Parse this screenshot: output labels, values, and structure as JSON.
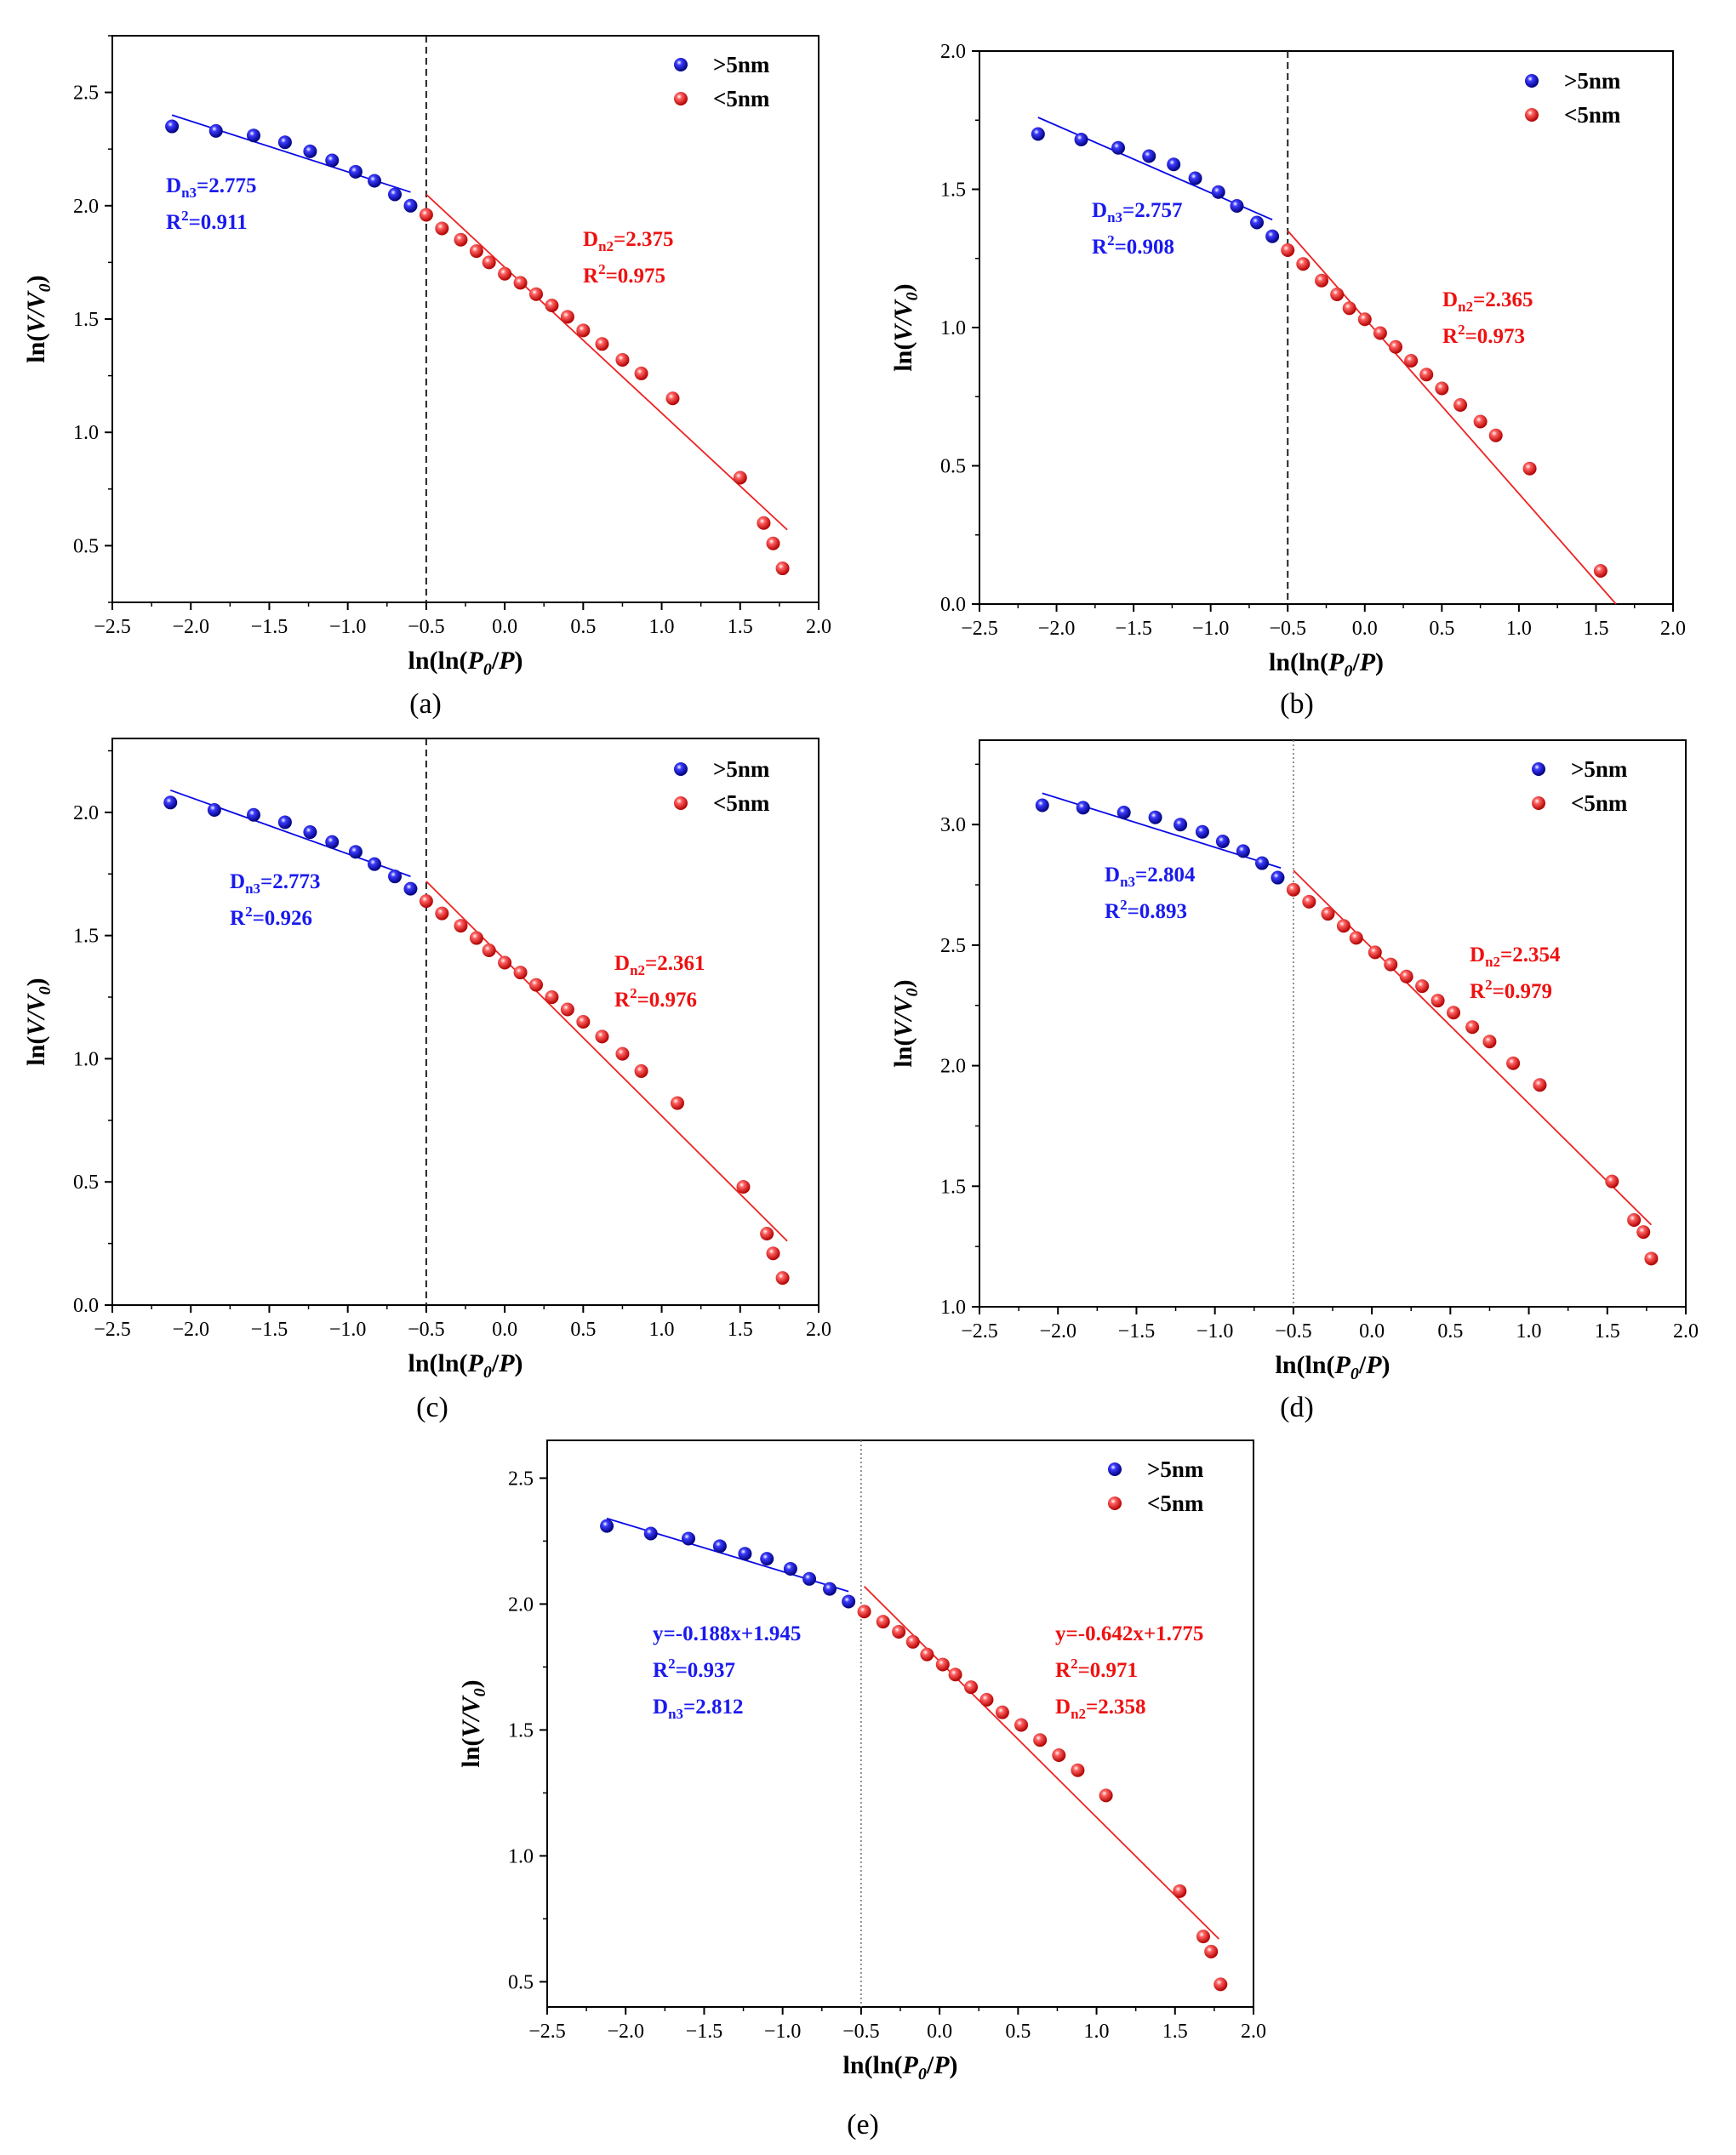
{
  "colors": {
    "blue": "#0a0ae6",
    "red": "#ee2222",
    "text_blue": "#1a1aee",
    "text_red": "#ee1111"
  },
  "legend": {
    "gt5": ">5nm",
    "lt5": "<5nm"
  },
  "axis_labels": {
    "x": "ln(ln(P0/P)",
    "y": "ln(V/V0)"
  },
  "chart_data": [
    {
      "type": "scatter",
      "panel_label": "(a)",
      "xlabel": "ln(ln(P0/P)",
      "ylabel": "ln(V/V0)",
      "xlim": [
        -2.5,
        2.0
      ],
      "ylim": [
        0.25,
        2.75
      ],
      "xticks": [
        "−2.5",
        "−2.0",
        "−1.5",
        "−1.0",
        "−0.5",
        "0.0",
        "0.5",
        "1.0",
        "1.5",
        "2.0"
      ],
      "yticks": [
        "0.5",
        "1.0",
        "1.5",
        "2.0",
        "2.5"
      ],
      "yticks_values": [
        0.5,
        1.0,
        1.5,
        2.0,
        2.5
      ],
      "divider_x": -0.5,
      "divider_style": "dashed",
      "series": [
        {
          "name": ">5nm",
          "x": [
            -2.12,
            -1.84,
            -1.6,
            -1.4,
            -1.24,
            -1.1,
            -0.95,
            -0.83,
            -0.7,
            -0.6
          ],
          "y": [
            2.35,
            2.33,
            2.31,
            2.28,
            2.24,
            2.2,
            2.15,
            2.11,
            2.05,
            2.0
          ],
          "fit": {
            "x": [
              -2.12,
              -0.6
            ],
            "y": [
              2.4,
              2.06
            ]
          }
        },
        {
          "name": "<5nm",
          "x": [
            -0.5,
            -0.4,
            -0.28,
            -0.18,
            -0.1,
            0.0,
            0.1,
            0.2,
            0.3,
            0.4,
            0.5,
            0.62,
            0.75,
            0.87,
            1.07,
            1.5,
            1.65,
            1.71,
            1.77
          ],
          "y": [
            1.96,
            1.9,
            1.85,
            1.8,
            1.75,
            1.7,
            1.66,
            1.61,
            1.56,
            1.51,
            1.45,
            1.39,
            1.32,
            1.26,
            1.15,
            0.8,
            0.6,
            0.51,
            0.4
          ],
          "fit": {
            "x": [
              -0.5,
              1.8
            ],
            "y": [
              2.05,
              0.57
            ]
          }
        }
      ],
      "annotations": {
        "blue": [
          {
            "base": "D",
            "sub": "n3",
            "rest": "=2.775"
          },
          {
            "base": "R",
            "sup": "2",
            "rest": "=0.911"
          }
        ],
        "red": [
          {
            "base": "D",
            "sub": "n2",
            "rest": "=2.375"
          },
          {
            "base": "R",
            "sup": "2",
            "rest": "=0.975"
          }
        ]
      }
    },
    {
      "type": "scatter",
      "panel_label": "(b)",
      "xlabel": "ln(ln(P0/P)",
      "ylabel": "ln(V/V0)",
      "xlim": [
        -2.5,
        2.0
      ],
      "ylim": [
        0.0,
        2.0
      ],
      "xticks": [
        "−2.5",
        "−2.0",
        "−1.5",
        "−1.0",
        "−0.5",
        "0.0",
        "0.5",
        "1.0",
        "1.5",
        "2.0"
      ],
      "yticks": [
        "0.0",
        "0.5",
        "1.0",
        "1.5",
        "2.0"
      ],
      "yticks_values": [
        0.0,
        0.5,
        1.0,
        1.5,
        2.0
      ],
      "divider_x": -0.5,
      "divider_style": "dashed",
      "series": [
        {
          "name": ">5nm",
          "x": [
            -2.12,
            -1.84,
            -1.6,
            -1.4,
            -1.24,
            -1.1,
            -0.95,
            -0.83,
            -0.7,
            -0.6
          ],
          "y": [
            1.7,
            1.68,
            1.65,
            1.62,
            1.59,
            1.54,
            1.49,
            1.44,
            1.38,
            1.33
          ],
          "fit": {
            "x": [
              -2.12,
              -0.6
            ],
            "y": [
              1.76,
              1.39
            ]
          }
        },
        {
          "name": "<5nm",
          "x": [
            -0.5,
            -0.4,
            -0.28,
            -0.18,
            -0.1,
            0.0,
            0.1,
            0.2,
            0.3,
            0.4,
            0.5,
            0.62,
            0.75,
            0.85,
            1.07,
            1.53
          ],
          "y": [
            1.28,
            1.23,
            1.17,
            1.12,
            1.07,
            1.03,
            0.98,
            0.93,
            0.88,
            0.83,
            0.78,
            0.72,
            0.66,
            0.61,
            0.49,
            0.12
          ],
          "fit": {
            "x": [
              -0.5,
              1.63
            ],
            "y": [
              1.35,
              0.0
            ]
          }
        }
      ],
      "annotations": {
        "blue": [
          {
            "base": "D",
            "sub": "n3",
            "rest": "=2.757"
          },
          {
            "base": "R",
            "sup": "2",
            "rest": "=0.908"
          }
        ],
        "red": [
          {
            "base": "D",
            "sub": "n2",
            "rest": "=2.365"
          },
          {
            "base": "R",
            "sup": "2",
            "rest": "=0.973"
          }
        ]
      }
    },
    {
      "type": "scatter",
      "panel_label": "(c)",
      "xlabel": "ln(ln(P0/P)",
      "ylabel": "ln(V/V0)",
      "xlim": [
        -2.5,
        2.0
      ],
      "ylim": [
        0.0,
        2.3
      ],
      "xticks": [
        "−2.5",
        "−2.0",
        "−1.5",
        "−1.0",
        "−0.5",
        "0.0",
        "0.5",
        "1.0",
        "1.5",
        "2.0"
      ],
      "yticks": [
        "0.0",
        "0.5",
        "1.0",
        "1.5",
        "2.0"
      ],
      "yticks_values": [
        0.0,
        0.5,
        1.0,
        1.5,
        2.0
      ],
      "divider_x": -0.5,
      "divider_style": "dashed",
      "series": [
        {
          "name": ">5nm",
          "x": [
            -2.13,
            -1.85,
            -1.6,
            -1.4,
            -1.24,
            -1.1,
            -0.95,
            -0.83,
            -0.7,
            -0.6
          ],
          "y": [
            2.04,
            2.01,
            1.99,
            1.96,
            1.92,
            1.88,
            1.84,
            1.79,
            1.74,
            1.69
          ],
          "fit": {
            "x": [
              -2.13,
              -0.6
            ],
            "y": [
              2.09,
              1.74
            ]
          }
        },
        {
          "name": "<5nm",
          "x": [
            -0.5,
            -0.4,
            -0.28,
            -0.18,
            -0.1,
            0.0,
            0.1,
            0.2,
            0.3,
            0.4,
            0.5,
            0.62,
            0.75,
            0.87,
            1.1,
            1.52,
            1.67,
            1.71,
            1.77
          ],
          "y": [
            1.64,
            1.59,
            1.54,
            1.49,
            1.44,
            1.39,
            1.35,
            1.3,
            1.25,
            1.2,
            1.15,
            1.09,
            1.02,
            0.95,
            0.82,
            0.48,
            0.29,
            0.21,
            0.11
          ],
          "fit": {
            "x": [
              -0.5,
              1.8
            ],
            "y": [
              1.72,
              0.26
            ]
          }
        }
      ],
      "annotations": {
        "blue": [
          {
            "base": "D",
            "sub": "n3",
            "rest": "=2.773"
          },
          {
            "base": "R",
            "sup": "2",
            "rest": "=0.926"
          }
        ],
        "red": [
          {
            "base": "D",
            "sub": "n2",
            "rest": "=2.361"
          },
          {
            "base": "R",
            "sup": "2",
            "rest": "=0.976"
          }
        ]
      }
    },
    {
      "type": "scatter",
      "panel_label": "(d)",
      "xlabel": "ln(ln(P0/P)",
      "ylabel": "ln(V/V0)",
      "xlim": [
        -2.5,
        2.0
      ],
      "ylim": [
        1.0,
        3.35
      ],
      "xticks": [
        "−2.5",
        "−2.0",
        "−1.5",
        "−1.0",
        "−0.5",
        "0.0",
        "0.5",
        "1.0",
        "1.5",
        "2.0"
      ],
      "yticks": [
        "1.0",
        "1.5",
        "2.0",
        "2.5",
        "3.0"
      ],
      "yticks_values": [
        1.0,
        1.5,
        2.0,
        2.5,
        3.0
      ],
      "divider_x": -0.5,
      "divider_style": "dotted",
      "series": [
        {
          "name": ">5nm",
          "x": [
            -2.1,
            -1.84,
            -1.58,
            -1.38,
            -1.22,
            -1.08,
            -0.95,
            -0.82,
            -0.7,
            -0.6
          ],
          "y": [
            3.08,
            3.07,
            3.05,
            3.03,
            3.0,
            2.97,
            2.93,
            2.89,
            2.84,
            2.78
          ],
          "fit": {
            "x": [
              -2.1,
              -0.58
            ],
            "y": [
              3.13,
              2.82
            ]
          }
        },
        {
          "name": "<5nm",
          "x": [
            -0.5,
            -0.4,
            -0.28,
            -0.18,
            -0.1,
            0.02,
            0.12,
            0.22,
            0.32,
            0.42,
            0.52,
            0.64,
            0.75,
            0.9,
            1.07,
            1.53,
            1.67,
            1.73,
            1.78
          ],
          "y": [
            2.73,
            2.68,
            2.63,
            2.58,
            2.53,
            2.47,
            2.42,
            2.37,
            2.33,
            2.27,
            2.22,
            2.16,
            2.1,
            2.01,
            1.92,
            1.52,
            1.36,
            1.31,
            1.2
          ],
          "fit": {
            "x": [
              -0.5,
              1.78
            ],
            "y": [
              2.81,
              1.34
            ]
          }
        }
      ],
      "annotations": {
        "blue": [
          {
            "base": "D",
            "sub": "n3",
            "rest": "=2.804"
          },
          {
            "base": "R",
            "sup": "2",
            "rest": "=0.893"
          }
        ],
        "red": [
          {
            "base": "D",
            "sub": "n2",
            "rest": "=2.354"
          },
          {
            "base": "R",
            "sup": "2",
            "rest": "=0.979"
          }
        ]
      }
    },
    {
      "type": "scatter",
      "panel_label": "(e)",
      "xlabel": "ln(ln(P0/P)",
      "ylabel": "ln(V/V0)",
      "xlim": [
        -2.5,
        2.0
      ],
      "ylim": [
        0.4,
        2.65
      ],
      "xticks": [
        "−2.5",
        "−2.0",
        "−1.5",
        "−1.0",
        "−0.5",
        "0.0",
        "0.5",
        "1.0",
        "1.5",
        "2.0"
      ],
      "yticks": [
        "0.5",
        "1.0",
        "1.5",
        "2.0",
        "2.5"
      ],
      "yticks_values": [
        0.5,
        1.0,
        1.5,
        2.0,
        2.5
      ],
      "divider_x": -0.5,
      "divider_style": "dotted",
      "series": [
        {
          "name": ">5nm",
          "x": [
            -2.12,
            -1.84,
            -1.6,
            -1.4,
            -1.24,
            -1.1,
            -0.95,
            -0.83,
            -0.7,
            -0.58
          ],
          "y": [
            2.31,
            2.28,
            2.26,
            2.23,
            2.2,
            2.18,
            2.14,
            2.1,
            2.06,
            2.01
          ],
          "fit": {
            "x": [
              -2.12,
              -0.58
            ],
            "y": [
              2.34,
              2.05
            ]
          }
        },
        {
          "name": "<5nm",
          "x": [
            -0.48,
            -0.36,
            -0.26,
            -0.17,
            -0.08,
            0.02,
            0.1,
            0.2,
            0.3,
            0.4,
            0.52,
            0.64,
            0.76,
            0.88,
            1.06,
            1.53,
            1.68,
            1.73,
            1.79
          ],
          "y": [
            1.97,
            1.93,
            1.89,
            1.85,
            1.8,
            1.76,
            1.72,
            1.67,
            1.62,
            1.57,
            1.52,
            1.46,
            1.4,
            1.34,
            1.24,
            0.86,
            0.68,
            0.62,
            0.49
          ],
          "fit": {
            "x": [
              -0.48,
              1.78
            ],
            "y": [
              2.07,
              0.67
            ]
          }
        }
      ],
      "annotations": {
        "blue": [
          {
            "base": "y=-0.188x+1.945"
          },
          {
            "base": "R",
            "sup": "2",
            "rest": "=0.937"
          },
          {
            "base": "D",
            "sub": "n3",
            "rest": "=2.812"
          }
        ],
        "red": [
          {
            "base": "y=-0.642x+1.775"
          },
          {
            "base": "R",
            "sup": "2",
            "rest": "=0.971"
          },
          {
            "base": "D",
            "sub": "n2",
            "rest": "=2.358"
          }
        ]
      }
    }
  ]
}
